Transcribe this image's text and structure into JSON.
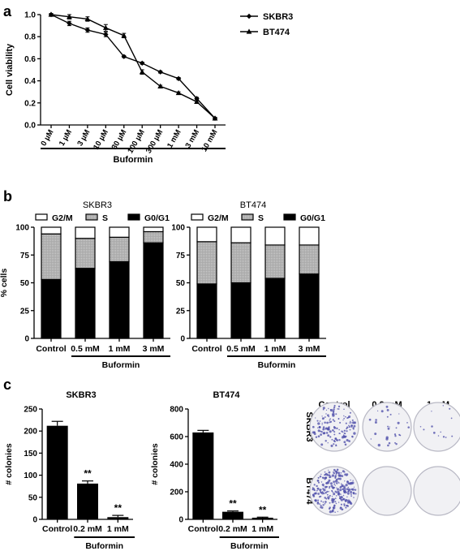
{
  "panels": {
    "a": {
      "letter": "a"
    },
    "b": {
      "letter": "b"
    },
    "c": {
      "letter": "c"
    }
  },
  "colors": {
    "ink": "#000000",
    "s_phase": "#a9a9a9",
    "white": "#ffffff",
    "colony_stain": "#4a4aa8"
  },
  "chart_data": [
    {
      "panel": "a",
      "type": "line",
      "ylabel": "Cell viability",
      "xgroup_label": "Buformin",
      "categories": [
        "0 µM",
        "1 µM",
        "3 µM",
        "10 µM",
        "30 µM",
        "100 µM",
        "300 µM",
        "1 mM",
        "3 mM",
        "10 mM"
      ],
      "ylim": [
        0,
        1.0
      ],
      "yticks": [
        "0.0",
        "0.2",
        "0.4",
        "0.6",
        "0.8",
        "1.0"
      ],
      "legend_position": "top-right",
      "series": [
        {
          "name": "SKBR3",
          "marker": "diamond",
          "values": [
            1.0,
            0.92,
            0.86,
            0.82,
            0.62,
            0.56,
            0.48,
            0.42,
            0.24,
            0.06
          ],
          "errors": [
            0.01,
            0.02,
            0.02,
            0.02,
            0.01,
            0.01,
            0.01,
            0.01,
            0.01,
            0.01
          ]
        },
        {
          "name": "BT474",
          "marker": "triangle",
          "values": [
            1.0,
            0.98,
            0.96,
            0.88,
            0.81,
            0.48,
            0.35,
            0.29,
            0.21,
            0.06
          ],
          "errors": [
            0.01,
            0.02,
            0.02,
            0.03,
            0.02,
            0.02,
            0.01,
            0.01,
            0.01,
            0.01
          ]
        }
      ]
    },
    {
      "panel": "b",
      "type": "bar",
      "stacked": true,
      "title": "SKBR3",
      "ylabel": "% cells",
      "xgroup_label": "Buformin",
      "categories": [
        "Control",
        "0.5 mM",
        "1 mM",
        "3 mM"
      ],
      "ylim": [
        0,
        100
      ],
      "yticks": [
        "0",
        "25",
        "50",
        "75",
        "100"
      ],
      "legend_position": "top",
      "series": [
        {
          "name": "G0/G1",
          "fill": "black",
          "values": [
            53,
            63,
            69,
            86
          ]
        },
        {
          "name": "S",
          "fill": "grey",
          "values": [
            41,
            27,
            22,
            10
          ]
        },
        {
          "name": "G2/M",
          "fill": "white",
          "values": [
            6,
            10,
            9,
            4
          ]
        }
      ]
    },
    {
      "panel": "b",
      "type": "bar",
      "stacked": true,
      "title": "BT474",
      "ylabel": "% cells",
      "xgroup_label": "Buformin",
      "categories": [
        "Control",
        "0.5 mM",
        "1 mM",
        "3 mM"
      ],
      "ylim": [
        0,
        100
      ],
      "yticks": [
        "0",
        "25",
        "50",
        "75",
        "100"
      ],
      "legend_position": "top",
      "series": [
        {
          "name": "G0/G1",
          "fill": "black",
          "values": [
            49,
            50,
            54,
            58
          ]
        },
        {
          "name": "S",
          "fill": "grey",
          "values": [
            38,
            36,
            30,
            26
          ]
        },
        {
          "name": "G2/M",
          "fill": "white",
          "values": [
            13,
            14,
            16,
            16
          ]
        }
      ]
    },
    {
      "panel": "c",
      "type": "bar",
      "title": "SKBR3",
      "ylabel": "# colonies",
      "xgroup_label": "Buformin",
      "categories": [
        "Control",
        "0.2 mM",
        "1 mM"
      ],
      "ylim": [
        0,
        250
      ],
      "yticks": [
        "0",
        "50",
        "100",
        "150",
        "200",
        "250"
      ],
      "values": [
        212,
        81,
        5
      ],
      "errors": [
        10,
        6,
        4
      ],
      "annotations": [
        "",
        "**",
        "**"
      ]
    },
    {
      "panel": "c",
      "type": "bar",
      "title": "BT474",
      "ylabel": "# colonies",
      "xgroup_label": "Buformin",
      "categories": [
        "Control",
        "0.2 mM",
        "1 mM"
      ],
      "ylim": [
        0,
        800
      ],
      "yticks": [
        "0",
        "200",
        "400",
        "600",
        "800"
      ],
      "values": [
        630,
        55,
        12
      ],
      "errors": [
        15,
        6,
        4
      ],
      "annotations": [
        "",
        "**",
        "**"
      ]
    }
  ],
  "colony_assay": {
    "columns": [
      "Control",
      "0.2 mM",
      "1 mM"
    ],
    "rows": [
      "SKBR3",
      "BT474"
    ],
    "density": [
      [
        0.55,
        0.12,
        0.05
      ],
      [
        0.95,
        0.0,
        0.0
      ]
    ]
  }
}
